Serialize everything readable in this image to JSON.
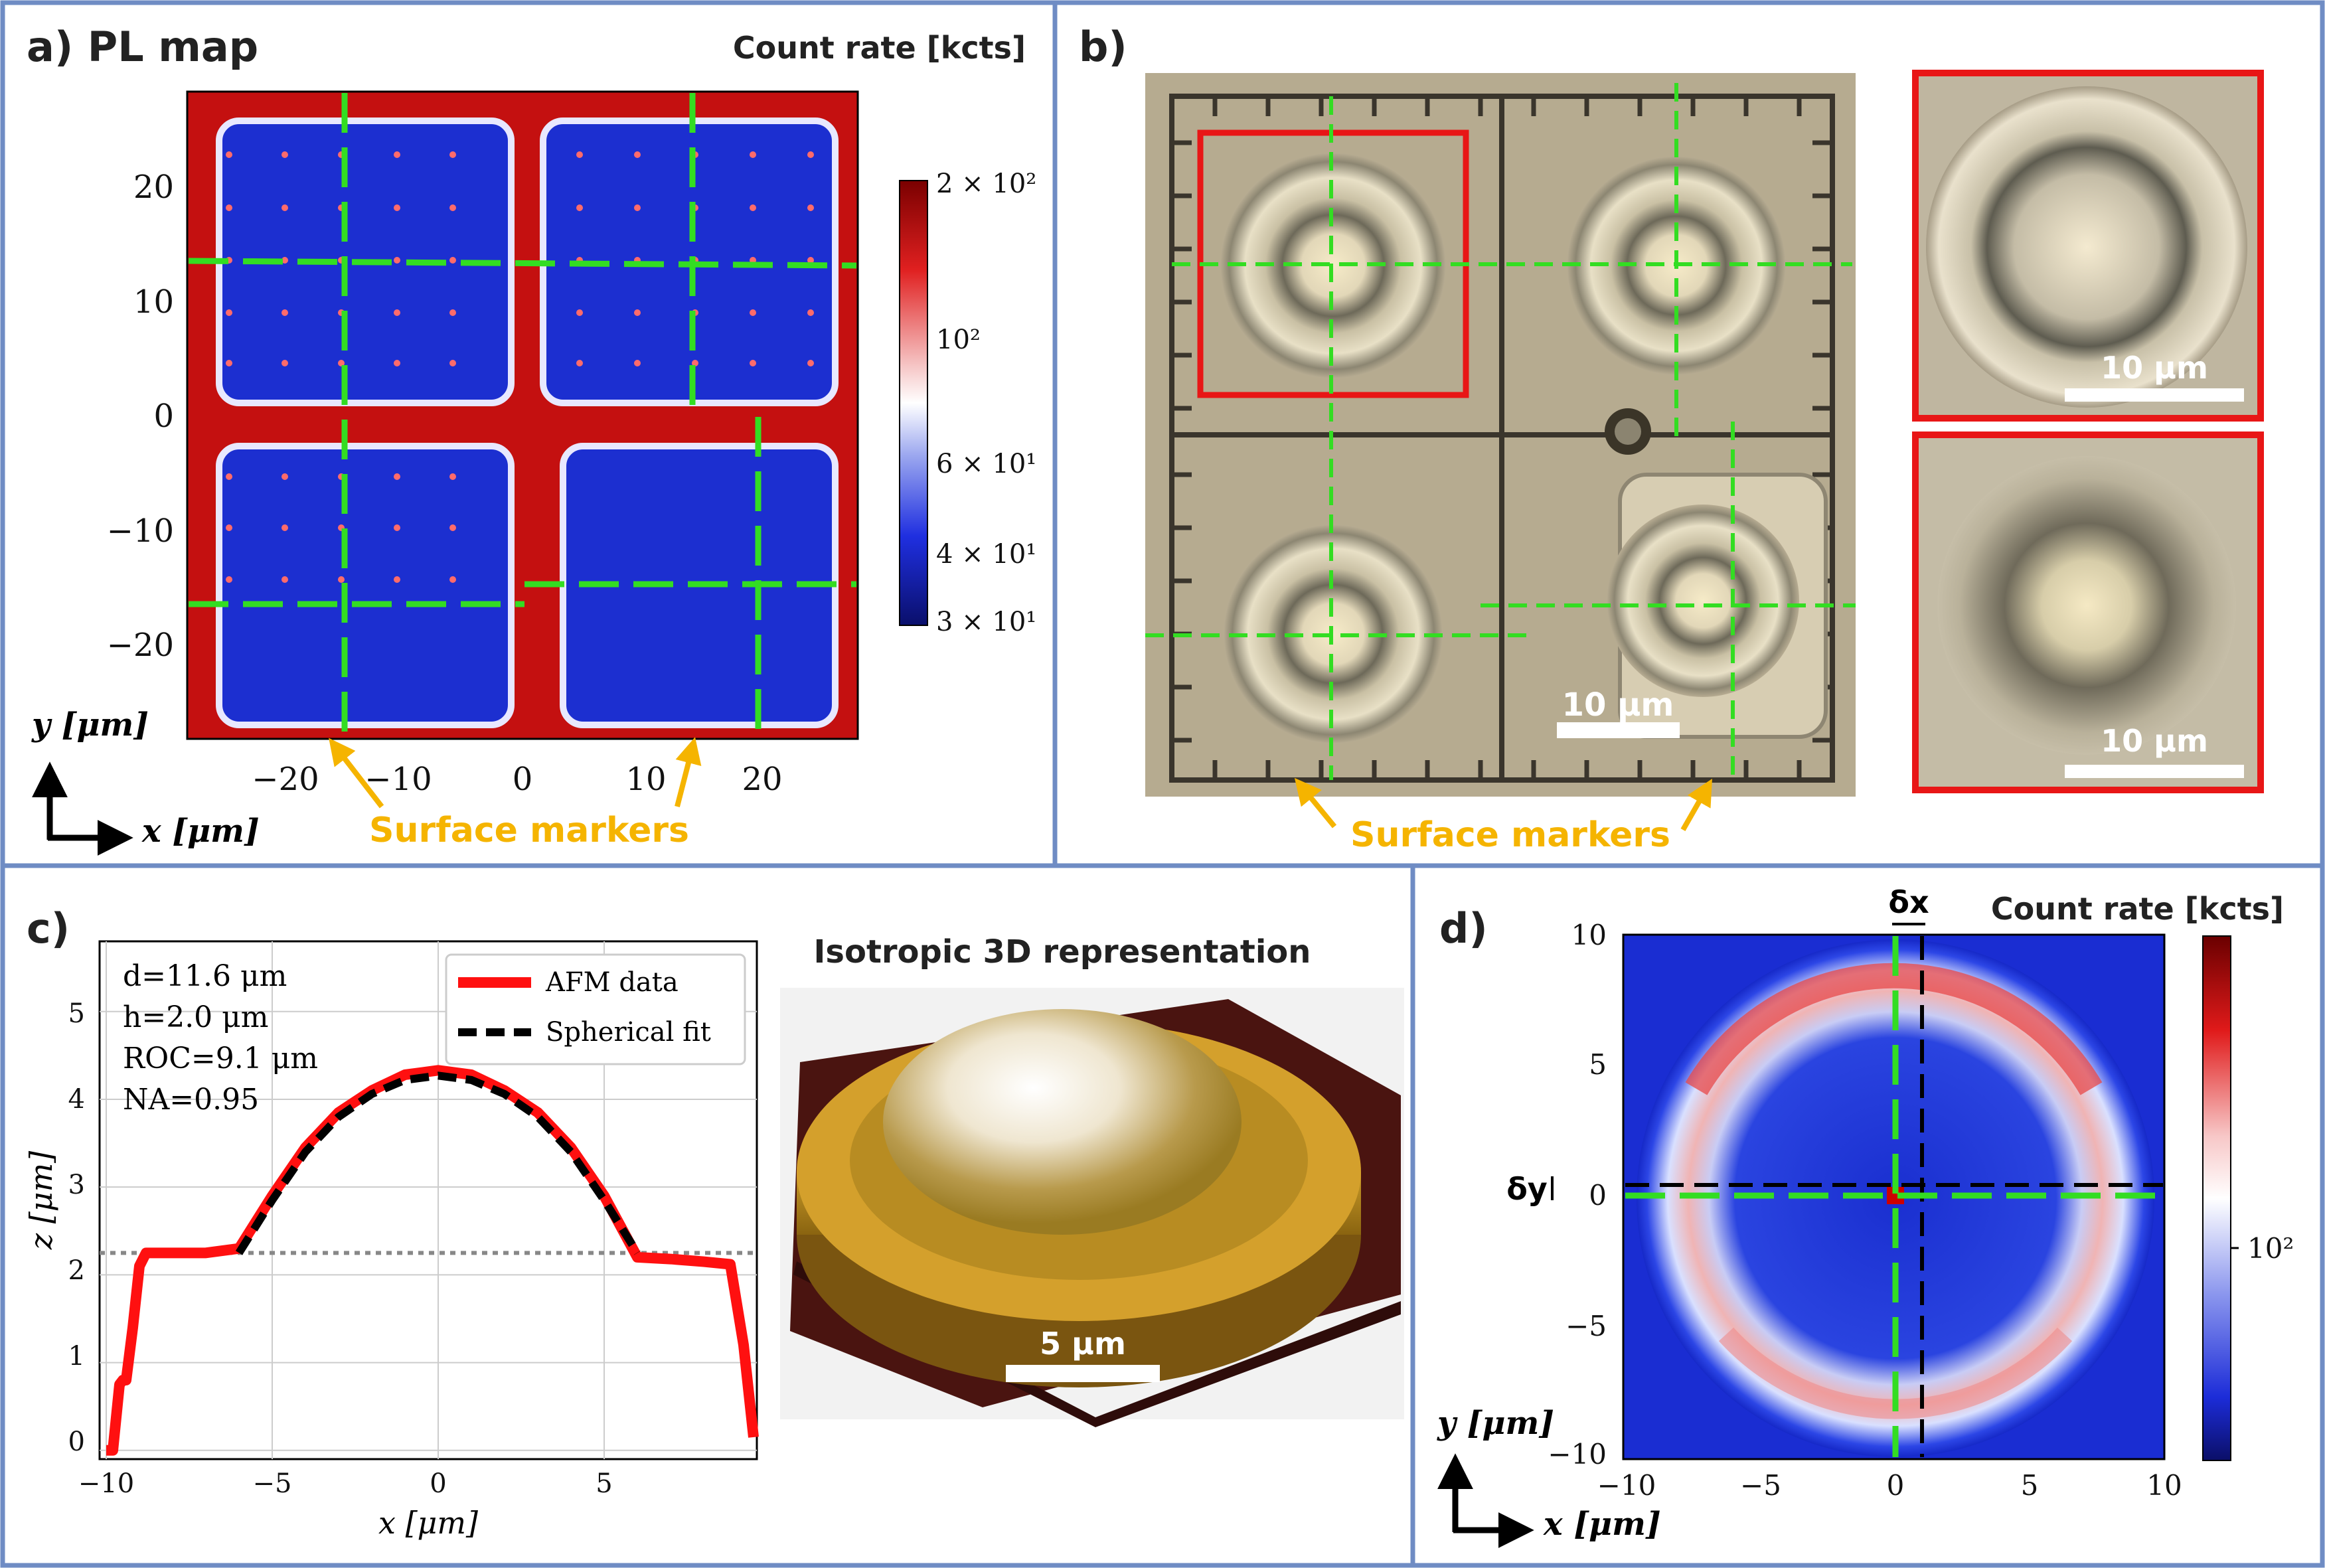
{
  "panel_a": {
    "label": "a) PL map",
    "colorbar_title": "Count rate [kcts]",
    "colorbar_ticks": [
      "2 × 10²",
      "10²",
      "6 × 10¹",
      "4 × 10¹",
      "3 × 10¹"
    ],
    "x_ticks": [
      "−20",
      "−10",
      "0",
      "10",
      "20"
    ],
    "y_ticks": [
      "20",
      "10",
      "0",
      "−10",
      "−20"
    ],
    "x_axis": "x [μm]",
    "y_axis": "y [μm]",
    "annotation": "Surface markers",
    "colors": {
      "low": "#0a1ea8",
      "mid": "#ffffff",
      "high": "#c40000",
      "marker": "#f5b400",
      "guide": "#33dd22"
    }
  },
  "panel_b": {
    "label": "b)",
    "scale_main": "10 μm",
    "scale_inset_top": "10 μm",
    "scale_inset_bottom": "10 μm",
    "annotation": "Surface markers"
  },
  "panel_c": {
    "label": "c)",
    "params": [
      "d=11.6 μm",
      "h=2.0 μm",
      "ROC=9.1 μm",
      "NA=0.95"
    ],
    "legend": [
      "AFM data",
      "Spherical fit"
    ],
    "x_ticks": [
      "−10",
      "−5",
      "0",
      "5"
    ],
    "y_ticks": [
      "5",
      "4",
      "3",
      "2",
      "1",
      "0"
    ],
    "x_axis": "x [μm]",
    "y_axis": "z [μm]",
    "render_title": "Isotropic 3D representation",
    "render_scale": "5 μm"
  },
  "panel_d": {
    "label": "d)",
    "colorbar_title": "Count rate [kcts]",
    "colorbar_tick": "10²",
    "x_ticks": [
      "−10",
      "−5",
      "0",
      "5",
      "10"
    ],
    "y_ticks": [
      "10",
      "5",
      "0",
      "−5",
      "−10"
    ],
    "x_axis": "x [μm]",
    "y_axis": "y [μm]",
    "dx_label": "δx",
    "dy_label": "δy"
  },
  "chart_data": [
    {
      "type": "line",
      "title": "",
      "xlabel": "x [μm]",
      "ylabel": "z [μm]",
      "xlim": [
        -10.2,
        9.6
      ],
      "ylim": [
        -0.1,
        5.8
      ],
      "series": [
        {
          "name": "AFM data",
          "x": [
            -10,
            -9.8,
            -9.6,
            -9.5,
            -9.4,
            -9.2,
            -9.0,
            -8.8,
            -8.6,
            -7,
            -6,
            -5,
            -4,
            -3,
            -2,
            -1,
            0,
            1,
            2,
            3,
            4,
            5,
            6,
            7,
            8,
            8.8,
            9.2,
            9.5
          ],
          "y": [
            0.0,
            0.0,
            0.75,
            0.8,
            0.8,
            1.4,
            2.1,
            2.25,
            2.25,
            2.25,
            2.3,
            2.9,
            3.45,
            3.85,
            4.1,
            4.28,
            4.33,
            4.28,
            4.1,
            3.85,
            3.45,
            2.9,
            2.2,
            2.18,
            2.15,
            2.12,
            1.2,
            0.15
          ]
        },
        {
          "name": "Spherical fit",
          "x": [
            -6,
            -5,
            -4,
            -3,
            -2,
            -1,
            0,
            1,
            2,
            3,
            4,
            5,
            6
          ],
          "y": [
            2.25,
            2.85,
            3.4,
            3.8,
            4.06,
            4.22,
            4.27,
            4.22,
            4.06,
            3.8,
            3.4,
            2.85,
            2.25
          ]
        }
      ],
      "reference_line_y": 2.25
    }
  ]
}
